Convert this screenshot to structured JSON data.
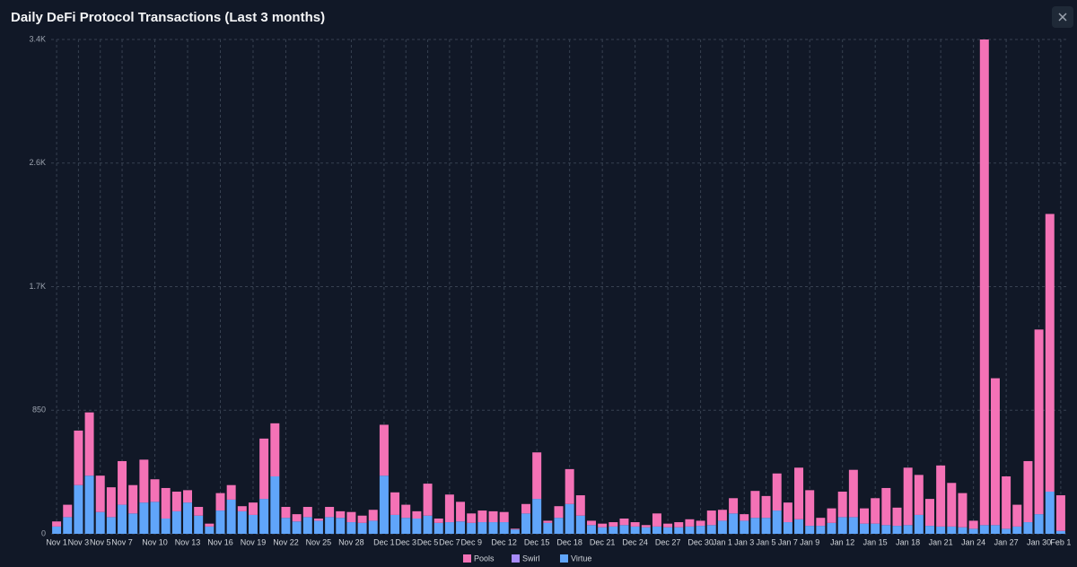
{
  "chart_data": {
    "type": "stacked_bar",
    "title": "Daily DeFi Protocol Transactions (Last 3 months)",
    "categories": [
      "Nov 1",
      null,
      "Nov 3",
      null,
      "Nov 5",
      null,
      "Nov 7",
      null,
      null,
      "Nov 10",
      null,
      null,
      "Nov 13",
      null,
      null,
      "Nov 16",
      null,
      null,
      "Nov 19",
      null,
      null,
      "Nov 22",
      null,
      null,
      "Nov 25",
      null,
      null,
      "Nov 28",
      null,
      null,
      "Dec 1",
      null,
      "Dec 3",
      null,
      "Dec 5",
      null,
      "Dec 7",
      null,
      "Dec 9",
      null,
      null,
      "Dec 12",
      null,
      null,
      "Dec 15",
      null,
      null,
      "Dec 18",
      null,
      null,
      "Dec 21",
      null,
      null,
      "Dec 24",
      null,
      null,
      "Dec 27",
      null,
      null,
      "Dec 30",
      null,
      "Jan 1",
      null,
      "Jan 3",
      null,
      "Jan 5",
      null,
      "Jan 7",
      null,
      "Jan 9",
      null,
      null,
      "Jan 12",
      null,
      null,
      "Jan 15",
      null,
      null,
      "Jan 18",
      null,
      null,
      "Jan 21",
      null,
      null,
      "Jan 24",
      null,
      null,
      "Jan 27",
      null,
      null,
      "Jan 30",
      null,
      "Feb 1"
    ],
    "series": [
      {
        "name": "Pools",
        "color": "#f472b6",
        "values": [
          35,
          85,
          375,
          435,
          250,
          205,
          300,
          195,
          295,
          155,
          210,
          135,
          85,
          60,
          20,
          120,
          100,
          35,
          85,
          415,
          365,
          75,
          50,
          70,
          15,
          70,
          45,
          70,
          50,
          75,
          350,
          155,
          90,
          50,
          220,
          30,
          190,
          135,
          65,
          80,
          75,
          70,
          5,
          65,
          320,
          15,
          80,
          240,
          140,
          30,
          25,
          30,
          45,
          30,
          15,
          90,
          25,
          35,
          50,
          35,
          100,
          75,
          105,
          45,
          185,
          150,
          255,
          135,
          355,
          245,
          55,
          100,
          175,
          325,
          105,
          175,
          255,
          125,
          395,
          275,
          185,
          420,
          300,
          235,
          55,
          3340,
          1010,
          360,
          150,
          420,
          1270,
          1910,
          245
        ]
      },
      {
        "name": "Swirl",
        "color": "#a78bfa",
        "values": [
          0,
          0,
          0,
          0,
          0,
          0,
          0,
          0,
          0,
          0,
          0,
          0,
          0,
          0,
          0,
          0,
          0,
          0,
          0,
          0,
          0,
          0,
          0,
          0,
          0,
          0,
          0,
          0,
          0,
          0,
          0,
          0,
          0,
          0,
          0,
          0,
          0,
          0,
          0,
          0,
          0,
          0,
          0,
          0,
          0,
          0,
          0,
          0,
          0,
          0,
          0,
          0,
          0,
          0,
          0,
          0,
          0,
          0,
          0,
          0,
          0,
          0,
          0,
          0,
          0,
          0,
          0,
          0,
          0,
          0,
          0,
          0,
          0,
          0,
          0,
          0,
          0,
          0,
          0,
          0,
          0,
          0,
          0,
          0,
          0,
          0,
          0,
          0,
          0,
          0,
          0,
          0,
          0
        ]
      },
      {
        "name": "Virtue",
        "color": "#60a5fa",
        "values": [
          50,
          115,
          335,
          400,
          150,
          115,
          200,
          140,
          215,
          220,
          105,
          155,
          215,
          125,
          50,
          160,
          235,
          155,
          130,
          240,
          395,
          110,
          85,
          115,
          90,
          115,
          110,
          80,
          75,
          90,
          400,
          130,
          110,
          105,
          125,
          75,
          80,
          85,
          75,
          80,
          80,
          80,
          30,
          140,
          240,
          75,
          110,
          205,
          125,
          60,
          45,
          50,
          60,
          50,
          45,
          50,
          45,
          45,
          50,
          55,
          60,
          90,
          140,
          90,
          110,
          110,
          160,
          80,
          100,
          55,
          55,
          75,
          115,
          115,
          70,
          70,
          60,
          55,
          60,
          130,
          55,
          50,
          50,
          45,
          35,
          60,
          60,
          35,
          50,
          80,
          135,
          290,
          20
        ]
      }
    ],
    "ylim": [
      0,
      3400
    ],
    "yticks": [
      0,
      850,
      {
        "value": 1700,
        "label": "1.7K"
      },
      {
        "value": 2550,
        "label": "2.6K"
      },
      {
        "value": 3400,
        "label": "3.4K"
      }
    ],
    "grid": true,
    "legend": "bottom"
  }
}
